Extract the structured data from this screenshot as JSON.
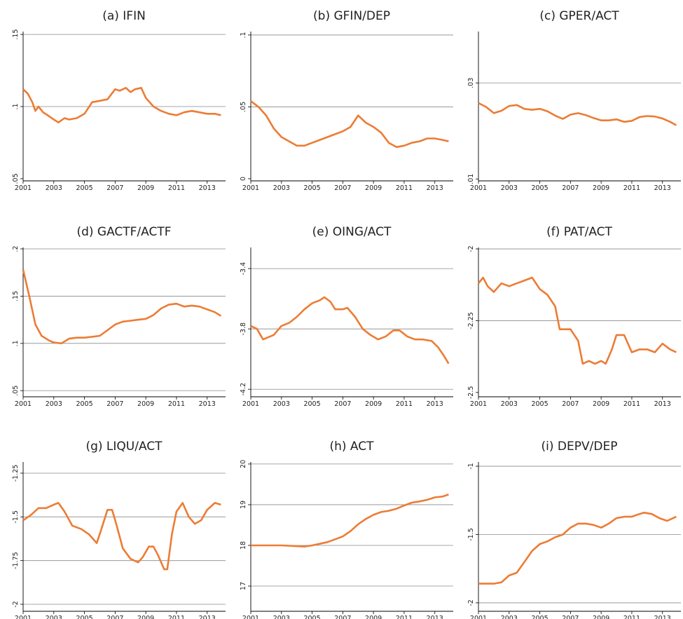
{
  "chart_data": [
    {
      "type": "line",
      "title": "(a) IFIN",
      "color": "#ec7c35",
      "grid": true,
      "x": [
        2001,
        2001.3,
        2001.6,
        2001.8,
        2002,
        2002.3,
        2002.6,
        2003,
        2003.3,
        2003.7,
        2004,
        2004.5,
        2005,
        2005.5,
        2006,
        2006.5,
        2007,
        2007.3,
        2007.7,
        2008,
        2008.3,
        2008.7,
        2009,
        2009.5,
        2010,
        2010.5,
        2011,
        2011.5,
        2012,
        2012.5,
        2013,
        2013.5,
        2013.9
      ],
      "values": [
        0.112,
        0.109,
        0.103,
        0.097,
        0.1,
        0.096,
        0.094,
        0.091,
        0.089,
        0.092,
        0.091,
        0.092,
        0.095,
        0.103,
        0.104,
        0.105,
        0.112,
        0.111,
        0.113,
        0.11,
        0.112,
        0.113,
        0.106,
        0.1,
        0.097,
        0.095,
        0.094,
        0.096,
        0.097,
        0.096,
        0.095,
        0.095,
        0.094
      ],
      "xlim": [
        2001,
        2014.2
      ],
      "xticks": [
        2001,
        2003,
        2005,
        2007,
        2009,
        2011,
        2013
      ],
      "ylim": [
        0.0485,
        0.152
      ],
      "yticks": [
        {
          "value": 0.05,
          "label": ".05"
        },
        {
          "value": 0.1,
          "label": ".1"
        },
        {
          "value": 0.15,
          "label": ".15"
        }
      ]
    },
    {
      "type": "line",
      "title": "(b) GFIN/DEP",
      "color": "#ec7c35",
      "grid": true,
      "x": [
        2001,
        2001.5,
        2002,
        2002.5,
        2003,
        2003.5,
        2004,
        2004.5,
        2005,
        2005.5,
        2006,
        2006.5,
        2007,
        2007.5,
        2008,
        2008.5,
        2009,
        2009.5,
        2010,
        2010.5,
        2011,
        2011.5,
        2012,
        2012.5,
        2013,
        2013.5,
        2013.9
      ],
      "values": [
        0.054,
        0.05,
        0.044,
        0.035,
        0.029,
        0.026,
        0.023,
        0.023,
        0.025,
        0.027,
        0.029,
        0.031,
        0.033,
        0.036,
        0.044,
        0.039,
        0.036,
        0.032,
        0.025,
        0.022,
        0.023,
        0.025,
        0.026,
        0.028,
        0.028,
        0.027,
        0.026
      ],
      "xlim": [
        2001,
        2014.2
      ],
      "xticks": [
        2001,
        2003,
        2005,
        2007,
        2009,
        2011,
        2013
      ],
      "ylim": [
        -0.0015,
        0.1024
      ],
      "yticks": [
        0,
        {
          "value": 0.05,
          "label": ".05"
        },
        {
          "value": 0.1,
          "label": ".1"
        }
      ]
    },
    {
      "type": "line",
      "title": "(c) GPER/ACT",
      "color": "#ec7c35",
      "grid": true,
      "x": [
        2001,
        2001.5,
        2002,
        2002.5,
        2003,
        2003.5,
        2004,
        2004.5,
        2005,
        2005.5,
        2006,
        2006.5,
        2007,
        2007.5,
        2008,
        2008.5,
        2009,
        2009.5,
        2010,
        2010.5,
        2011,
        2011.5,
        2012,
        2012.5,
        2013,
        2013.5,
        2013.9
      ],
      "values": [
        0.0258,
        0.025,
        0.0237,
        0.0242,
        0.0252,
        0.0254,
        0.0246,
        0.0244,
        0.0246,
        0.0241,
        0.0232,
        0.0225,
        0.0234,
        0.0237,
        0.0233,
        0.0227,
        0.0222,
        0.0222,
        0.0224,
        0.0219,
        0.0221,
        0.0229,
        0.0231,
        0.023,
        0.0226,
        0.0219,
        0.0212
      ],
      "xlim": [
        2001,
        2014.2
      ],
      "xticks": [
        2001,
        2003,
        2005,
        2007,
        2009,
        2011,
        2013
      ],
      "ylim": [
        0.0096,
        0.0407
      ],
      "yticks": [
        {
          "value": 0.01,
          "label": ".01"
        },
        {
          "value": 0.03,
          "label": ".03"
        }
      ]
    },
    {
      "type": "line",
      "title": "(d)  GACTF/ACTF",
      "color": "#ec7c35",
      "grid": true,
      "x": [
        2001,
        2001.4,
        2001.8,
        2002.2,
        2002.7,
        2003,
        2003.5,
        2004,
        2004.5,
        2005,
        2005.5,
        2006,
        2006.5,
        2007,
        2007.5,
        2008,
        2008.5,
        2009,
        2009.5,
        2010,
        2010.5,
        2011,
        2011.5,
        2012,
        2012.5,
        2013,
        2013.5,
        2013.9
      ],
      "values": [
        0.178,
        0.15,
        0.12,
        0.108,
        0.103,
        0.101,
        0.1,
        0.105,
        0.106,
        0.106,
        0.107,
        0.108,
        0.114,
        0.12,
        0.123,
        0.124,
        0.125,
        0.126,
        0.13,
        0.137,
        0.141,
        0.142,
        0.139,
        0.14,
        0.139,
        0.136,
        0.133,
        0.129
      ],
      "xlim": [
        2001,
        2014.2
      ],
      "xticks": [
        2001,
        2003,
        2005,
        2007,
        2009,
        2011,
        2013
      ],
      "ylim": [
        0.0435,
        0.2015
      ],
      "yticks": [
        {
          "value": 0.05,
          "label": ".05"
        },
        {
          "value": 0.1,
          "label": ".1"
        },
        {
          "value": 0.15,
          "label": ".15"
        },
        {
          "value": 0.2,
          "label": ".2"
        }
      ]
    },
    {
      "type": "line",
      "title": "(e) OING/ACT",
      "color": "#ec7c35",
      "grid": true,
      "x": [
        2001,
        2001.4,
        2001.8,
        2002.5,
        2003,
        2003.5,
        2004,
        2004.5,
        2005,
        2005.5,
        2005.8,
        2006.2,
        2006.5,
        2007,
        2007.3,
        2007.8,
        2008.3,
        2008.8,
        2009.3,
        2009.8,
        2010.3,
        2010.7,
        2011.2,
        2011.7,
        2012.2,
        2012.8,
        2013.2,
        2013.6,
        2013.9
      ],
      "values": [
        -3.78,
        -3.8,
        -3.87,
        -3.84,
        -3.78,
        -3.76,
        -3.72,
        -3.67,
        -3.63,
        -3.61,
        -3.59,
        -3.62,
        -3.67,
        -3.67,
        -3.66,
        -3.72,
        -3.8,
        -3.84,
        -3.87,
        -3.85,
        -3.81,
        -3.81,
        -3.85,
        -3.87,
        -3.87,
        -3.88,
        -3.92,
        -3.98,
        -4.03
      ],
      "xlim": [
        2001,
        2014.2
      ],
      "xticks": [
        2001,
        2003,
        2005,
        2007,
        2009,
        2011,
        2013
      ],
      "ylim": [
        -4.25,
        -3.26
      ],
      "yticks": [
        -4.2,
        -3.8,
        -3.4
      ]
    },
    {
      "type": "line",
      "title": "(f) PAT/ACT",
      "color": "#ec7c35",
      "grid": true,
      "x": [
        2001,
        2001.3,
        2001.6,
        2002,
        2002.5,
        2003,
        2003.5,
        2004,
        2004.5,
        2005,
        2005.5,
        2006,
        2006.3,
        2006.7,
        2007,
        2007.5,
        2007.8,
        2008.2,
        2008.6,
        2009,
        2009.3,
        2009.7,
        2010,
        2010.5,
        2011,
        2011.5,
        2012,
        2012.5,
        2013,
        2013.5,
        2013.9
      ],
      "values": [
        -2.12,
        -2.1,
        -2.13,
        -2.15,
        -2.12,
        -2.13,
        -2.12,
        -2.11,
        -2.1,
        -2.14,
        -2.16,
        -2.2,
        -2.28,
        -2.28,
        -2.28,
        -2.32,
        -2.4,
        -2.39,
        -2.4,
        -2.39,
        -2.4,
        -2.35,
        -2.3,
        -2.3,
        -2.36,
        -2.35,
        -2.35,
        -2.36,
        -2.33,
        -2.35,
        -2.36
      ],
      "xlim": [
        2001,
        2014.2
      ],
      "xticks": [
        2001,
        2003,
        2005,
        2007,
        2009,
        2011,
        2013
      ],
      "ylim": [
        -2.515,
        -1.995
      ],
      "yticks": [
        -2.5,
        -2.25,
        -2
      ]
    },
    {
      "type": "line",
      "title": "(g) LIQU/ACT",
      "color": "#ec7c35",
      "grid": true,
      "x": [
        2001,
        2001.5,
        2002,
        2002.5,
        2003,
        2003.3,
        2003.7,
        2004.2,
        2004.8,
        2005.3,
        2005.8,
        2006.1,
        2006.5,
        2006.8,
        2007.1,
        2007.5,
        2008,
        2008.5,
        2008.8,
        2009.2,
        2009.5,
        2009.8,
        2010.2,
        2010.4,
        2010.7,
        2011,
        2011.4,
        2011.8,
        2012.2,
        2012.6,
        2013,
        2013.5,
        2013.9
      ],
      "values": [
        -1.52,
        -1.49,
        -1.45,
        -1.45,
        -1.43,
        -1.42,
        -1.47,
        -1.55,
        -1.57,
        -1.6,
        -1.65,
        -1.57,
        -1.46,
        -1.46,
        -1.55,
        -1.68,
        -1.74,
        -1.76,
        -1.73,
        -1.67,
        -1.67,
        -1.72,
        -1.8,
        -1.8,
        -1.6,
        -1.47,
        -1.42,
        -1.5,
        -1.54,
        -1.52,
        -1.46,
        -1.42,
        -1.43
      ],
      "xlim": [
        2001,
        2014.2
      ],
      "xticks": [
        2001,
        2003,
        2005,
        2007,
        2009,
        2011,
        2013
      ],
      "ylim": [
        -2.04,
        -1.186
      ],
      "yticks": [
        -2,
        -1.75,
        -1.5,
        -1.25
      ]
    },
    {
      "type": "line",
      "title": "(h) ACT",
      "color": "#ec7c35",
      "grid": true,
      "x": [
        2001,
        2002,
        2003,
        2004,
        2004.5,
        2005,
        2005.5,
        2006,
        2006.5,
        2007,
        2007.5,
        2008,
        2008.5,
        2009,
        2009.5,
        2010,
        2010.5,
        2011,
        2011.5,
        2012,
        2012.5,
        2013,
        2013.5,
        2013.9
      ],
      "values": [
        18.0,
        18.0,
        18.0,
        17.98,
        17.97,
        18.0,
        18.04,
        18.08,
        18.15,
        18.22,
        18.35,
        18.52,
        18.65,
        18.75,
        18.82,
        18.85,
        18.9,
        18.98,
        19.05,
        19.08,
        19.12,
        19.18,
        19.2,
        19.25
      ],
      "xlim": [
        2001,
        2014.2
      ],
      "xticks": [
        2001,
        2003,
        2005,
        2007,
        2009,
        2011,
        2013
      ],
      "ylim": [
        16.38,
        20.05
      ],
      "yticks": [
        17,
        18,
        19,
        20
      ]
    },
    {
      "type": "line",
      "title": "(i) DEPV/DEP",
      "color": "#ec7c35",
      "grid": true,
      "x": [
        2001,
        2001.5,
        2002,
        2002.5,
        2003,
        2003.5,
        2004,
        2004.5,
        2005,
        2005.5,
        2006,
        2006.5,
        2007,
        2007.5,
        2008,
        2008.5,
        2009,
        2009.5,
        2010,
        2010.5,
        2011,
        2011.5,
        2011.8,
        2012.3,
        2012.8,
        2013.3,
        2013.9
      ],
      "values": [
        -1.86,
        -1.86,
        -1.86,
        -1.85,
        -1.8,
        -1.78,
        -1.7,
        -1.62,
        -1.57,
        -1.55,
        -1.52,
        -1.5,
        -1.45,
        -1.42,
        -1.42,
        -1.43,
        -1.45,
        -1.42,
        -1.38,
        -1.37,
        -1.37,
        -1.35,
        -1.34,
        -1.35,
        -1.38,
        -1.4,
        -1.37
      ],
      "xlim": [
        2001,
        2014.2
      ],
      "xticks": [
        2001,
        2003,
        2005,
        2007,
        2009,
        2011,
        2013
      ],
      "ylim": [
        -2.062,
        -0.969
      ],
      "yticks": [
        -2,
        -1.5,
        -1
      ]
    }
  ]
}
